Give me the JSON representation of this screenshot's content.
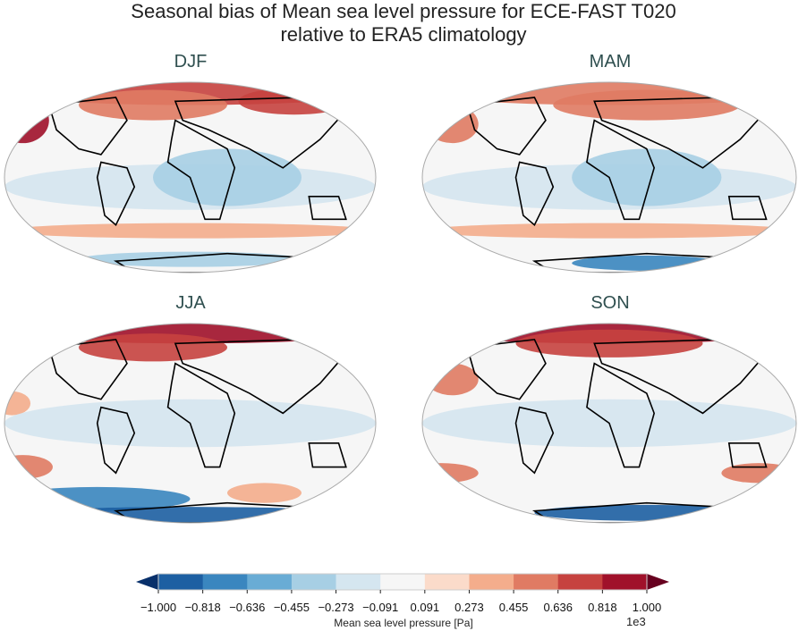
{
  "title_line1": "Seasonal bias of Mean sea level pressure for ECE-FAST T020",
  "title_line2": "relative to ERA5 climatology",
  "chart_data": {
    "type": "heatmap",
    "title": "Seasonal bias of Mean sea level pressure for ECE-FAST T020 relative to ERA5 climatology",
    "projection": "Robinson",
    "panels": [
      "DJF",
      "MAM",
      "JJA",
      "SON"
    ],
    "colormap": "RdBu_r",
    "colorbar": {
      "label": "Mean sea level pressure [Pa]",
      "multiplier": "1e3",
      "ticks": [
        "−1.000",
        "−0.818",
        "−0.636",
        "−0.455",
        "−0.273",
        "−0.091",
        "0.091",
        "0.273",
        "0.455",
        "0.636",
        "0.818",
        "1.000"
      ],
      "range": [
        -1.0,
        1.0
      ],
      "extend": "both",
      "colors": [
        "#1d5fa2",
        "#3a86bf",
        "#69acd5",
        "#a7cfe4",
        "#d5e6f0",
        "#f6f6f6",
        "#fbdbca",
        "#f4ad8c",
        "#e07b63",
        "#c6423f",
        "#a0112a"
      ],
      "under_color": "#08306b",
      "over_color": "#67001f"
    }
  }
}
